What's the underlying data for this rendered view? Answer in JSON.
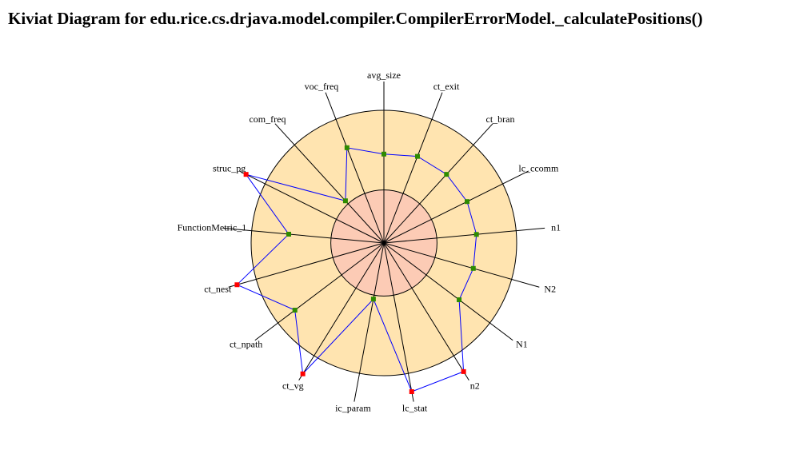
{
  "chart_data": {
    "type": "kiviat",
    "title": "Kiviat Diagram for edu.rice.cs.drjava.model.compiler.CompilerErrorModel._calculatePositions()",
    "categories": [
      "avg_size",
      "ct_exit",
      "ct_bran",
      "lc_ccomm",
      "n1",
      "N2",
      "N1",
      "n2",
      "lc_stat",
      "ic_param",
      "ct_vg",
      "ct_npath",
      "ct_nest",
      "FunctionMetric_1",
      "struc_pg",
      "com_freq",
      "voc_freq"
    ],
    "values": [
      0.67,
      0.7,
      0.7,
      0.7,
      0.7,
      0.7,
      0.71,
      1.14,
      1.14,
      0.43,
      1.16,
      0.84,
      1.15,
      0.72,
      1.16,
      0.43,
      0.77
    ],
    "rlim": [
      0,
      1
    ],
    "normal_range": [
      0.4,
      1.0
    ],
    "line_color": "#0000ff",
    "inside_color": "#2e8b00",
    "outside_color": "#ff0000",
    "outer_fill": "#ffe4b0",
    "inner_fill": "#fccbb5"
  }
}
